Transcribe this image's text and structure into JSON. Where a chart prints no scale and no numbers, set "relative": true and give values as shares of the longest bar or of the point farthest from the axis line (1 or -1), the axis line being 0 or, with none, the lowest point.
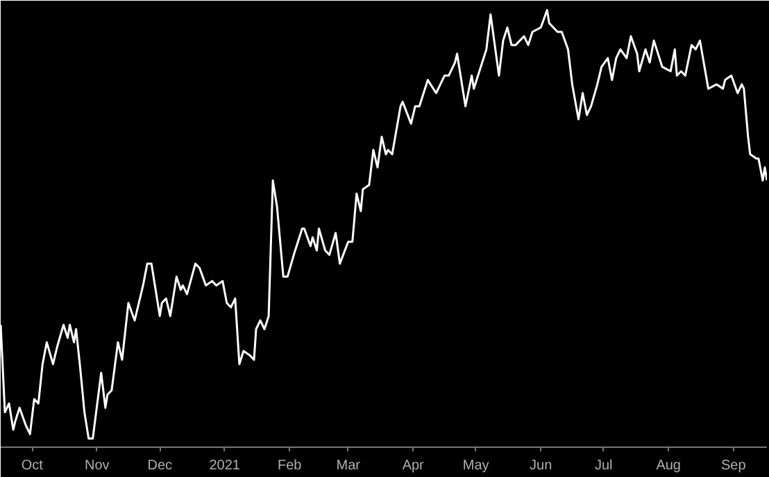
{
  "chart_data": {
    "type": "line",
    "relative": true,
    "marker": "none",
    "line_style": "solid",
    "xlim": [
      "2020-09-16",
      "2021-09-17"
    ],
    "xticks": [
      {
        "value": "2020-10-01",
        "label": "Oct"
      },
      {
        "value": "2020-11-01",
        "label": "Nov"
      },
      {
        "value": "2020-12-01",
        "label": "Dec"
      },
      {
        "value": "2021-01-01",
        "label": "2021"
      },
      {
        "value": "2021-02-01",
        "label": "Feb"
      },
      {
        "value": "2021-03-01",
        "label": "Mar"
      },
      {
        "value": "2021-04-01",
        "label": "Apr"
      },
      {
        "value": "2021-05-01",
        "label": "May"
      },
      {
        "value": "2021-06-01",
        "label": "Jun"
      },
      {
        "value": "2021-07-01",
        "label": "Jul"
      },
      {
        "value": "2021-08-01",
        "label": "Aug"
      },
      {
        "value": "2021-09-01",
        "label": "Sep"
      }
    ],
    "x": [
      "2020-09-16",
      "2020-09-18",
      "2020-09-20",
      "2020-09-22",
      "2020-09-23",
      "2020-09-25",
      "2020-09-28",
      "2020-09-30",
      "2020-10-02",
      "2020-10-04",
      "2020-10-06",
      "2020-10-08",
      "2020-10-11",
      "2020-10-13",
      "2020-10-16",
      "2020-10-18",
      "2020-10-19",
      "2020-10-21",
      "2020-10-22",
      "2020-10-24",
      "2020-10-26",
      "2020-10-28",
      "2020-10-30",
      "2020-11-03",
      "2020-11-05",
      "2020-11-06",
      "2020-11-08",
      "2020-11-11",
      "2020-11-13",
      "2020-11-16",
      "2020-11-19",
      "2020-11-23",
      "2020-11-25",
      "2020-11-27",
      "2020-12-01",
      "2020-12-02",
      "2020-12-04",
      "2020-12-06",
      "2020-12-09",
      "2020-12-11",
      "2020-12-12",
      "2020-12-14",
      "2020-12-18",
      "2020-12-20",
      "2020-12-23",
      "2020-12-26",
      "2020-12-28",
      "2020-12-31",
      "2021-01-02",
      "2021-01-04",
      "2021-01-06",
      "2021-01-08",
      "2021-01-10",
      "2021-01-13",
      "2021-01-15",
      "2021-01-16",
      "2021-01-18",
      "2021-01-20",
      "2021-01-22",
      "2021-01-24",
      "2021-01-26",
      "2021-01-29",
      "2021-01-31",
      "2021-02-03",
      "2021-02-07",
      "2021-02-08",
      "2021-02-11",
      "2021-02-12",
      "2021-02-14",
      "2021-02-15",
      "2021-02-18",
      "2021-02-20",
      "2021-02-23",
      "2021-02-25",
      "2021-03-01",
      "2021-03-03",
      "2021-03-05",
      "2021-03-07",
      "2021-03-08",
      "2021-03-11",
      "2021-03-13",
      "2021-03-15",
      "2021-03-17",
      "2021-03-19",
      "2021-03-20",
      "2021-03-22",
      "2021-03-26",
      "2021-03-27",
      "2021-03-31",
      "2021-04-02",
      "2021-04-04",
      "2021-04-08",
      "2021-04-12",
      "2021-04-16",
      "2021-04-18",
      "2021-04-21",
      "2021-04-22",
      "2021-04-26",
      "2021-04-29",
      "2021-04-30",
      "2021-05-02",
      "2021-05-06",
      "2021-05-08",
      "2021-05-12",
      "2021-05-14",
      "2021-05-16",
      "2021-05-18",
      "2021-05-20",
      "2021-05-24",
      "2021-05-26",
      "2021-05-28",
      "2021-06-01",
      "2021-06-04",
      "2021-06-05",
      "2021-06-09",
      "2021-06-11",
      "2021-06-14",
      "2021-06-16",
      "2021-06-19",
      "2021-06-21",
      "2021-06-23",
      "2021-06-25",
      "2021-06-28",
      "2021-06-30",
      "2021-07-03",
      "2021-07-05",
      "2021-07-07",
      "2021-07-09",
      "2021-07-12",
      "2021-07-14",
      "2021-07-17",
      "2021-07-18",
      "2021-07-21",
      "2021-07-23",
      "2021-07-25",
      "2021-07-29",
      "2021-08-02",
      "2021-08-04",
      "2021-08-05",
      "2021-08-07",
      "2021-08-09",
      "2021-08-12",
      "2021-08-14",
      "2021-08-16",
      "2021-08-20",
      "2021-08-24",
      "2021-08-27",
      "2021-08-28",
      "2021-08-31",
      "2021-09-03",
      "2021-09-05",
      "2021-09-06",
      "2021-09-08",
      "2021-09-09",
      "2021-09-12",
      "2021-09-13",
      "2021-09-15",
      "2021-09-16",
      "2021-09-17"
    ],
    "series": [
      {
        "color": "#ffffff",
        "values": [
          0.28,
          0.08,
          0.1,
          0.04,
          0.06,
          0.09,
          0.05,
          0.03,
          0.11,
          0.1,
          0.19,
          0.24,
          0.19,
          0.23,
          0.28,
          0.25,
          0.28,
          0.24,
          0.27,
          0.18,
          0.08,
          0.02,
          0.02,
          0.17,
          0.09,
          0.12,
          0.13,
          0.24,
          0.2,
          0.33,
          0.29,
          0.37,
          0.42,
          0.42,
          0.3,
          0.33,
          0.34,
          0.3,
          0.39,
          0.36,
          0.37,
          0.35,
          0.42,
          0.41,
          0.37,
          0.38,
          0.37,
          0.38,
          0.33,
          0.32,
          0.34,
          0.19,
          0.22,
          0.21,
          0.2,
          0.27,
          0.29,
          0.27,
          0.3,
          0.61,
          0.55,
          0.39,
          0.39,
          0.44,
          0.5,
          0.5,
          0.46,
          0.48,
          0.45,
          0.5,
          0.45,
          0.44,
          0.49,
          0.42,
          0.47,
          0.47,
          0.58,
          0.54,
          0.59,
          0.6,
          0.68,
          0.64,
          0.71,
          0.67,
          0.68,
          0.67,
          0.78,
          0.79,
          0.74,
          0.78,
          0.78,
          0.84,
          0.81,
          0.85,
          0.85,
          0.88,
          0.9,
          0.78,
          0.85,
          0.82,
          0.85,
          0.91,
          0.99,
          0.85,
          0.93,
          0.96,
          0.92,
          0.92,
          0.94,
          0.92,
          0.95,
          0.96,
          1,
          0.97,
          0.95,
          0.95,
          0.91,
          0.83,
          0.75,
          0.81,
          0.76,
          0.78,
          0.83,
          0.87,
          0.89,
          0.84,
          0.89,
          0.91,
          0.89,
          0.94,
          0.9,
          0.86,
          0.91,
          0.88,
          0.93,
          0.87,
          0.86,
          0.91,
          0.85,
          0.86,
          0.85,
          0.92,
          0.91,
          0.93,
          0.82,
          0.83,
          0.82,
          0.84,
          0.85,
          0.81,
          0.83,
          0.82,
          0.71,
          0.67,
          0.66,
          0.66,
          0.61,
          0.64,
          0.61
        ]
      }
    ]
  }
}
